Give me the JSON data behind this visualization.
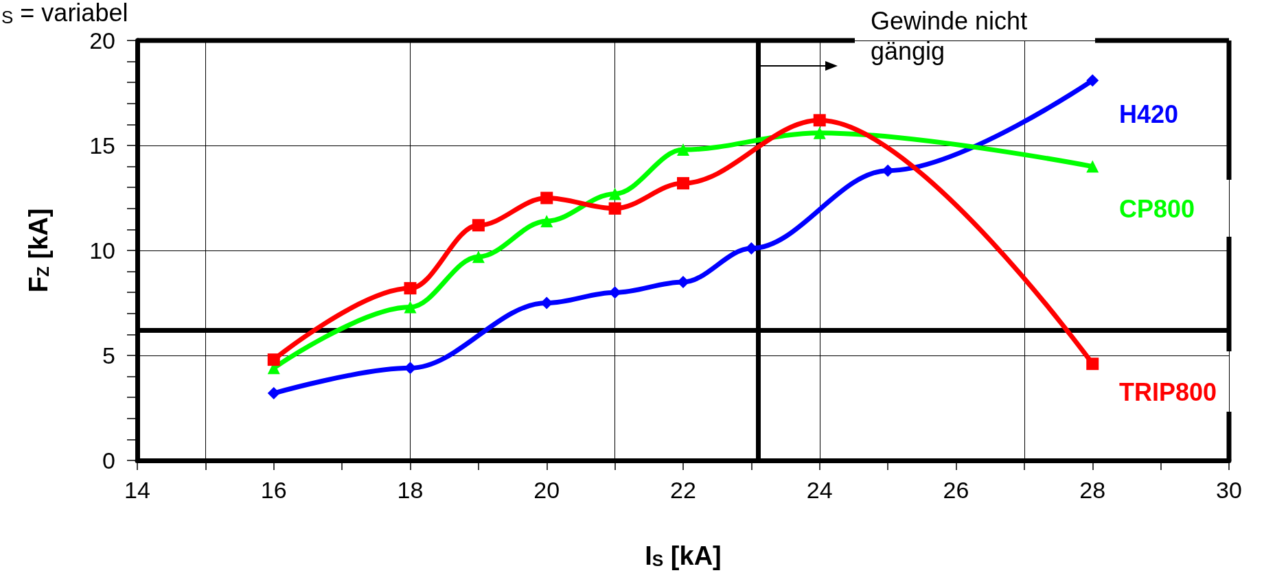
{
  "chart_data": {
    "type": "line",
    "xlabel": "I$_{S}$ [kA]",
    "ylabel": "F$_{Z}$ [kA]",
    "annotations": [
      "$_{S}$ = variabel",
      "Gewinde nicht gängig"
    ],
    "series": [
      {
        "name": "H420",
        "color": "#0000ff",
        "marker": "diamond",
        "x": [
          16,
          18,
          20,
          21,
          22,
          23,
          25,
          28
        ],
        "values": [
          3.2,
          4.4,
          7.5,
          8.0,
          8.5,
          10.1,
          13.8,
          18.1
        ]
      },
      {
        "name": "CP800",
        "color": "#00ff00",
        "marker": "triangle",
        "x": [
          16,
          18,
          19,
          20,
          21,
          22,
          24,
          28
        ],
        "values": [
          4.4,
          7.3,
          9.7,
          11.4,
          12.7,
          14.8,
          15.6,
          14.0
        ]
      },
      {
        "name": "TRIP800",
        "color": "#ff0000",
        "marker": "square",
        "x": [
          16,
          18,
          19,
          20,
          21,
          22,
          24,
          28
        ],
        "values": [
          4.8,
          8.2,
          11.2,
          12.5,
          12.0,
          13.2,
          16.2,
          4.6
        ]
      }
    ],
    "xlim": [
      14,
      30
    ],
    "xticks": [
      14,
      {
        "value": 15,
        "label": null
      },
      16,
      {
        "value": 17,
        "label": null
      },
      18,
      {
        "value": 19,
        "label": null
      },
      20,
      {
        "value": 21,
        "label": null
      },
      22,
      {
        "value": 23,
        "label": null
      },
      24,
      {
        "value": 25,
        "label": null
      },
      26,
      {
        "value": 27,
        "label": null
      },
      28,
      {
        "value": 29,
        "label": null
      },
      30
    ],
    "ylim": [
      0,
      20
    ],
    "yticks": [
      0,
      {
        "value": 1,
        "label": null
      },
      {
        "value": 2,
        "label": null
      },
      {
        "value": 3,
        "label": null
      },
      {
        "value": 4,
        "label": null
      },
      5,
      {
        "value": 6,
        "label": null
      },
      {
        "value": 7,
        "label": null
      },
      {
        "value": 8,
        "label": null
      },
      {
        "value": 9,
        "label": null
      },
      10,
      {
        "value": 11,
        "label": null
      },
      {
        "value": 12,
        "label": null
      },
      {
        "value": 13,
        "label": null
      },
      {
        "value": 14,
        "label": null
      },
      15,
      {
        "value": 16,
        "label": null
      },
      {
        "value": 17,
        "label": null
      },
      {
        "value": 18,
        "label": null
      },
      {
        "value": 19,
        "label": null
      },
      20
    ],
    "grid": true,
    "legend": false,
    "line_style": "solid",
    "ref_lines": [
      {
        "axis": "y",
        "value": 6.2,
        "color": "#000000"
      },
      {
        "axis": "x",
        "value": 23.1,
        "color": "#000000"
      }
    ]
  }
}
